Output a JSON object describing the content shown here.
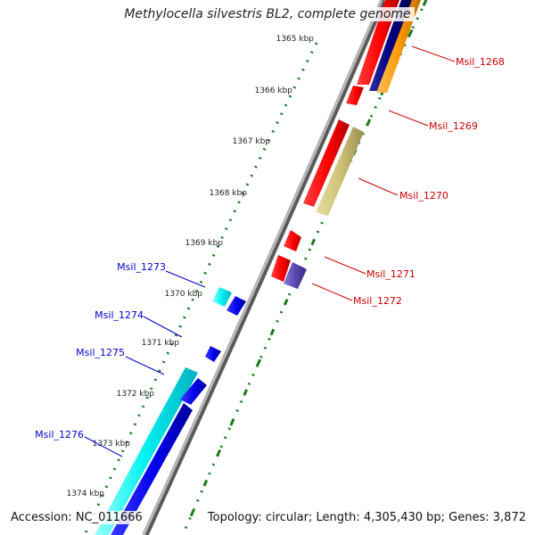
{
  "title": "Methylocella silvestris BL2, complete genome",
  "footer": {
    "accession": "Accession: NC_011666",
    "summary": "Topology: circular; Length: 4,305,430 bp; Genes: 3,872"
  },
  "colors": {
    "backbone": "#8c8c8c",
    "tick": "#1a7a1a",
    "forward_label": "#cc0000",
    "reverse_label": "#0000cc"
  },
  "ticks": [
    {
      "label": "1365 kbp"
    },
    {
      "label": "1366 kbp"
    },
    {
      "label": "1367 kbp"
    },
    {
      "label": "1368 kbp"
    },
    {
      "label": "1369 kbp"
    },
    {
      "label": "1370 kbp"
    },
    {
      "label": "1371 kbp"
    },
    {
      "label": "1372 kbp"
    },
    {
      "label": "1373 kbp"
    },
    {
      "label": "1374 kbp"
    }
  ],
  "forward_labels": [
    "Msil_1268",
    "Msil_1269",
    "Msil_1270",
    "Msil_1271",
    "Msil_1272"
  ],
  "reverse_labels": [
    "Msil_1273",
    "Msil_1274",
    "Msil_1275",
    "Msil_1276"
  ]
}
